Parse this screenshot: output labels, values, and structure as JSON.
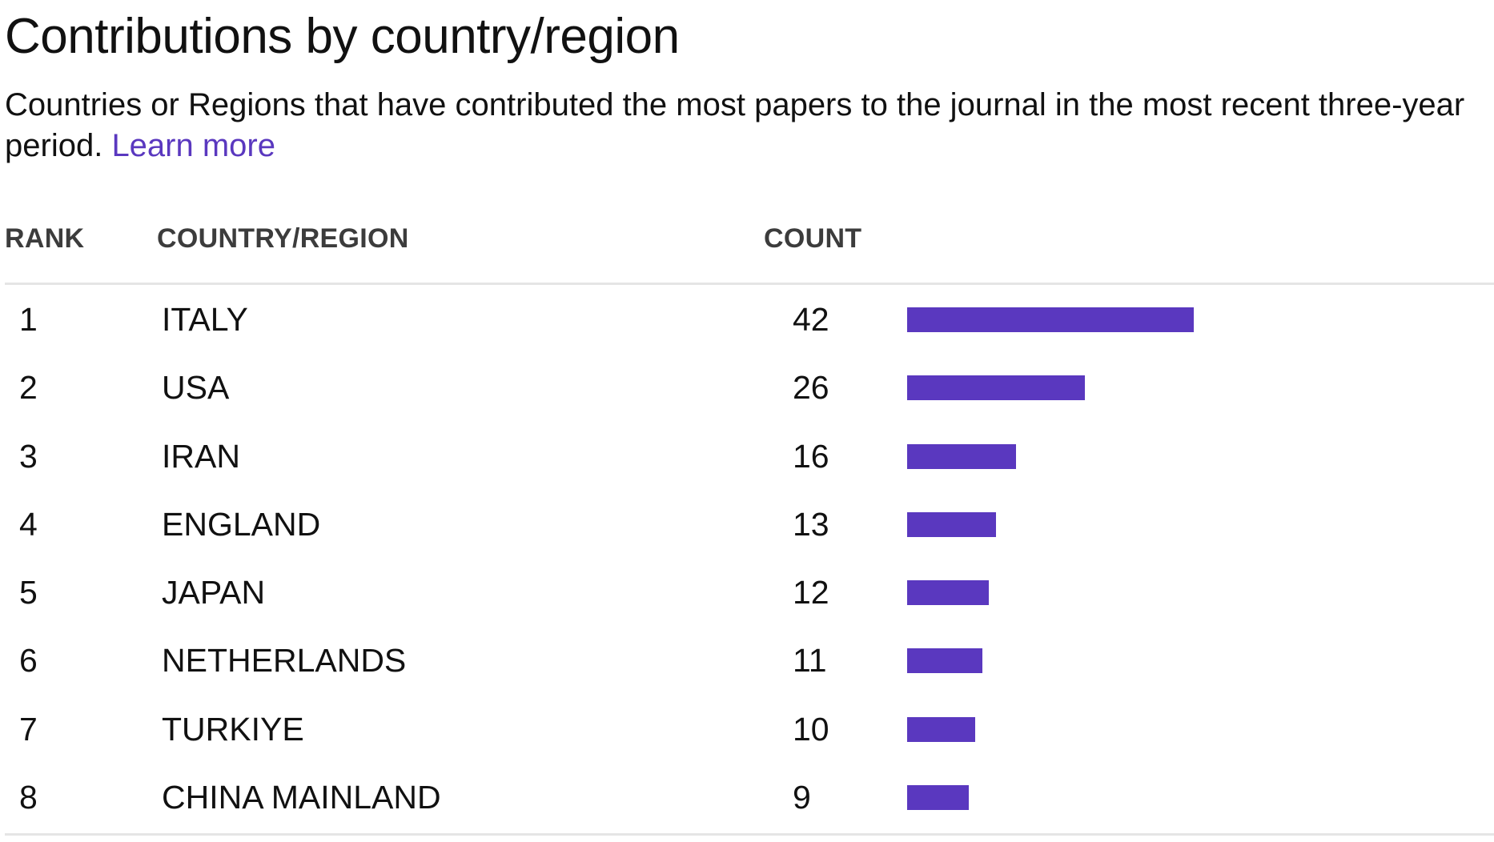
{
  "title": "Contributions by country/region",
  "description": "Countries or Regions that have contributed the most papers to the journal in the most recent three-year period.",
  "learn_more": "Learn more",
  "columns": {
    "rank": "RANK",
    "country": "COUNTRY/REGION",
    "count": "COUNT"
  },
  "colors": {
    "accent": "#5a38bf",
    "divider": "#e5e5e5"
  },
  "chart_data": {
    "type": "bar",
    "orientation": "horizontal",
    "categories": [
      "ITALY",
      "USA",
      "IRAN",
      "ENGLAND",
      "JAPAN",
      "NETHERLANDS",
      "TURKIYE",
      "CHINA MAINLAND"
    ],
    "ranks": [
      "1",
      "2",
      "3",
      "4",
      "5",
      "6",
      "7",
      "8"
    ],
    "values": [
      42,
      26,
      16,
      13,
      12,
      11,
      10,
      9
    ]
  }
}
